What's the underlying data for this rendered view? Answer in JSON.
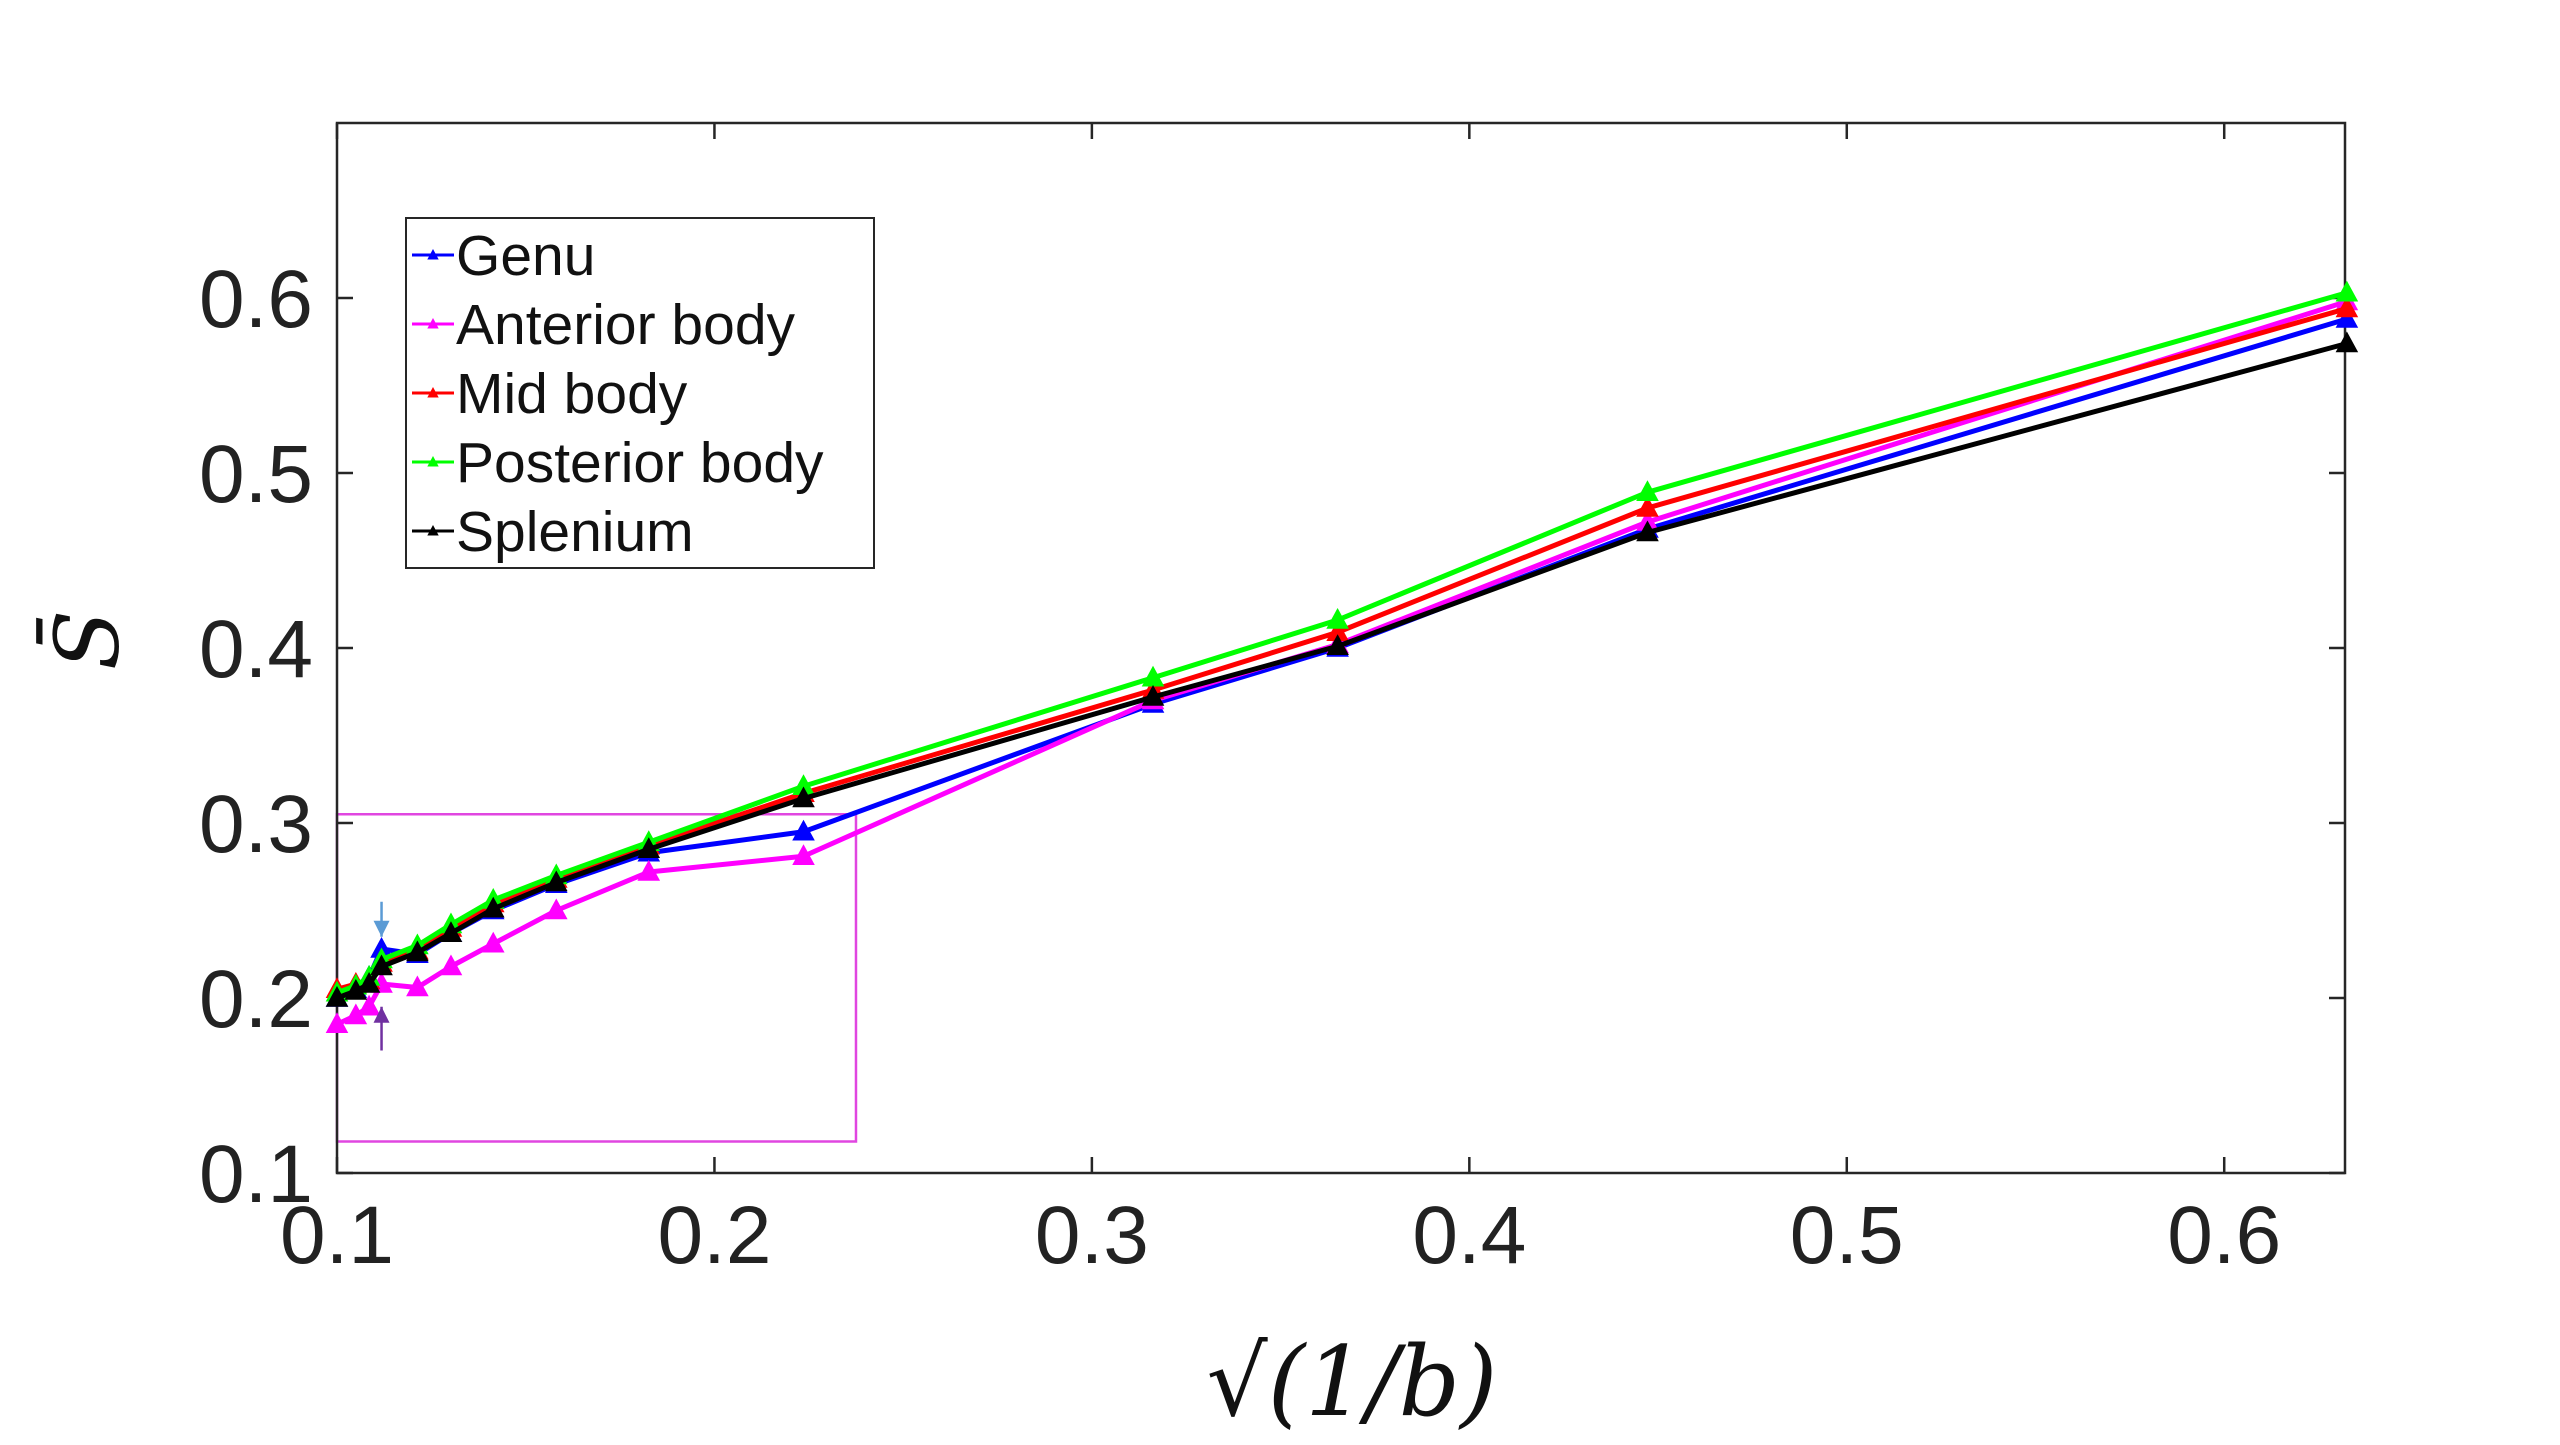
{
  "chart_data": {
    "type": "line",
    "title": "",
    "xlabel": "√(1/b)",
    "ylabel": "S̄",
    "xlim": [
      0.1,
      0.632
    ],
    "ylim": [
      0.1,
      0.7
    ],
    "xticks": [
      "0.1",
      "0.2",
      "0.3",
      "0.4",
      "0.5",
      "0.6"
    ],
    "yticks": [
      "0.1",
      "0.2",
      "0.3",
      "0.4",
      "0.5",
      "0.6"
    ],
    "grid": false,
    "legend_position": "top-left",
    "marker": "triangle",
    "x": [
      0.1,
      0.105,
      0.1085,
      0.1118,
      0.1213,
      0.1302,
      0.1414,
      0.1581,
      0.1826,
      0.2236,
      0.3162,
      0.3651,
      0.4472,
      0.6325
    ],
    "series": [
      {
        "name": "Genu",
        "color": "#0000FF",
        "values": [
          0.2,
          0.205,
          0.212,
          0.228,
          0.225,
          0.237,
          0.25,
          0.265,
          0.283,
          0.295,
          0.368,
          0.4,
          0.468,
          0.588
        ]
      },
      {
        "name": "Anterior body",
        "color": "#FF00FF",
        "values": [
          0.185,
          0.19,
          0.195,
          0.208,
          0.206,
          0.218,
          0.231,
          0.25,
          0.272,
          0.281,
          0.37,
          0.402,
          0.472,
          0.598
        ]
      },
      {
        "name": "Mid body",
        "color": "#FF0000",
        "values": [
          0.205,
          0.208,
          0.21,
          0.22,
          0.227,
          0.24,
          0.254,
          0.268,
          0.287,
          0.317,
          0.376,
          0.409,
          0.48,
          0.594
        ]
      },
      {
        "name": "Posterior body",
        "color": "#00FF00",
        "values": [
          0.203,
          0.207,
          0.212,
          0.222,
          0.23,
          0.242,
          0.256,
          0.27,
          0.289,
          0.321,
          0.383,
          0.416,
          0.489,
          0.603
        ]
      },
      {
        "name": "Splenium",
        "color": "#000000",
        "values": [
          0.2,
          0.204,
          0.208,
          0.218,
          0.226,
          0.237,
          0.251,
          0.266,
          0.285,
          0.314,
          0.372,
          0.401,
          0.466,
          0.574
        ]
      }
    ],
    "annotations": {
      "highlight_box": {
        "xmin": 0.1,
        "xmax": 0.2375,
        "ymin": 0.118,
        "ymax": 0.305,
        "color": "#E046E0"
      },
      "arrows": [
        {
          "x": 0.1118,
          "y_from": 0.255,
          "y_to": 0.235,
          "color": "#5B9BD5"
        },
        {
          "x": 0.1118,
          "y_from": 0.17,
          "y_to": 0.195,
          "color": "#7030A0"
        }
      ]
    }
  }
}
